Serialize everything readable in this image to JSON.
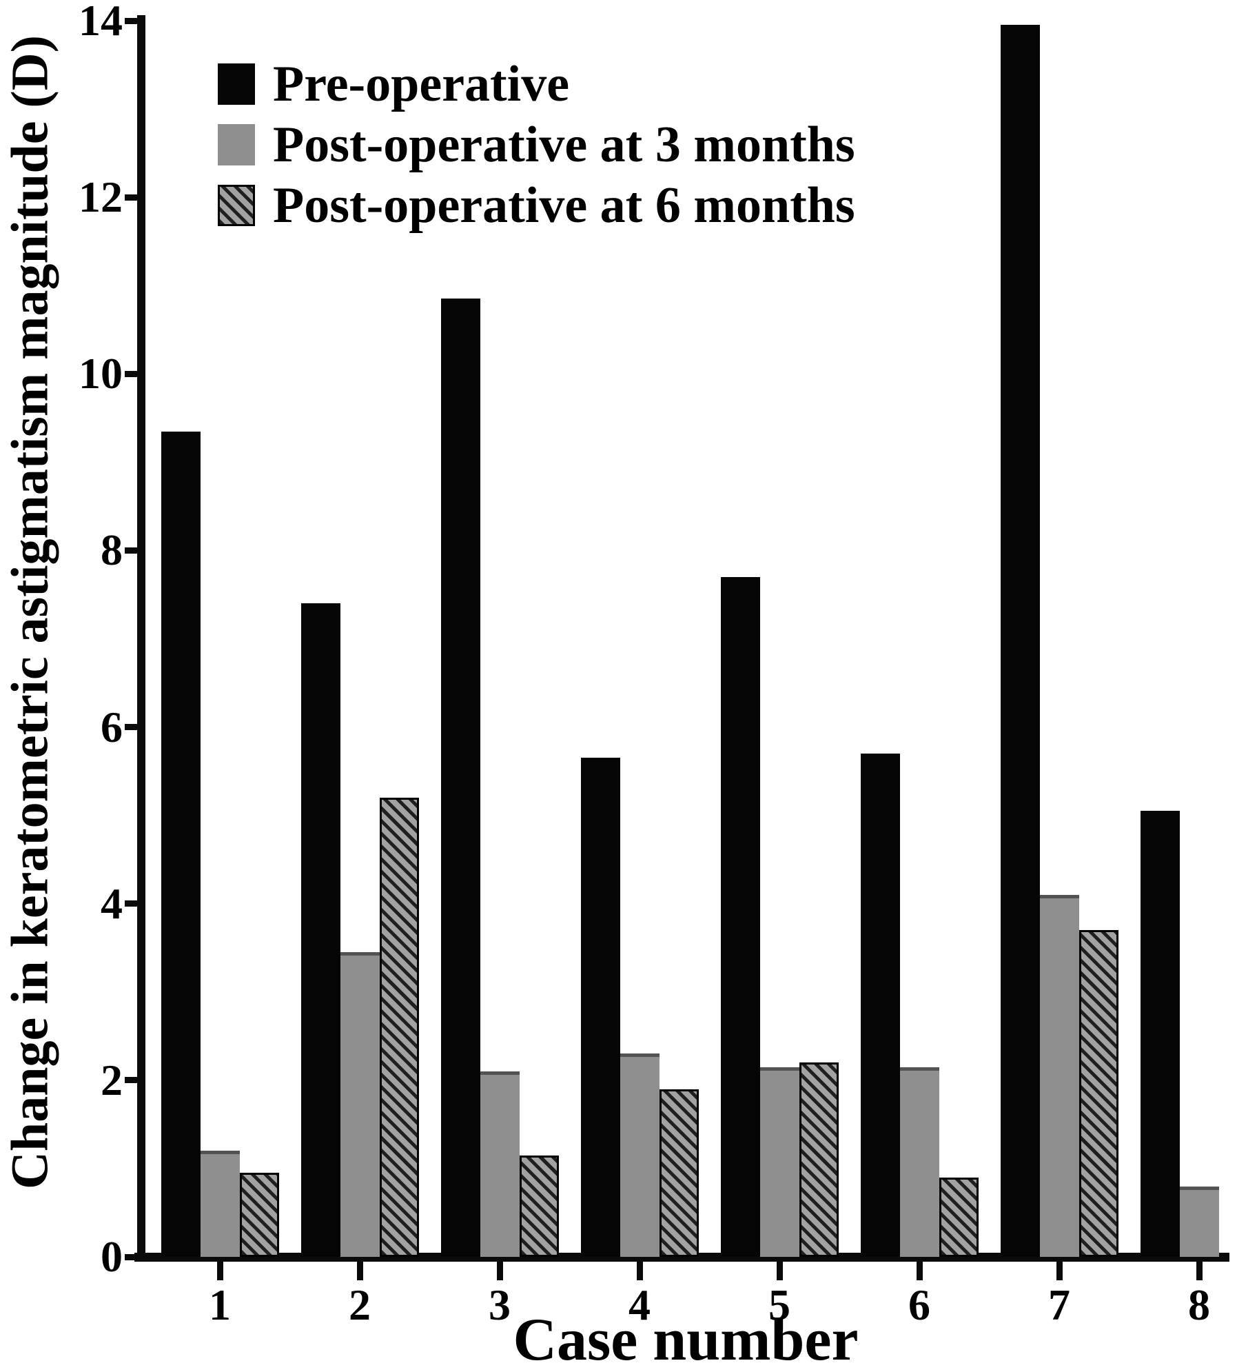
{
  "figure": {
    "background": "#ffffff",
    "text_color": "#000000",
    "axis_color": "#0a0a0a"
  },
  "chart_data": {
    "type": "bar",
    "title": "",
    "xlabel": "Case number",
    "ylabel": "Change in keratometric astigmatism magnitude (D)",
    "categories": [
      "1",
      "2",
      "3",
      "4",
      "5",
      "6",
      "7",
      "8"
    ],
    "series": [
      {
        "name": "Pre-operative",
        "style": "solid-black",
        "color": "#050505",
        "values": [
          9.35,
          7.4,
          10.85,
          5.65,
          7.7,
          5.7,
          13.95,
          5.05
        ]
      },
      {
        "name": "Post-operative at 3 months",
        "style": "solid-gray",
        "color": "#8f8f8f",
        "values": [
          1.2,
          3.45,
          2.1,
          2.3,
          2.15,
          2.15,
          4.1,
          0.8
        ]
      },
      {
        "name": "Post-operative at 6 months",
        "style": "hatched-diagonal",
        "color": "#a2a2a2",
        "hatch_color": "#1f1f1f",
        "values": [
          0.95,
          5.2,
          1.15,
          1.9,
          2.2,
          0.9,
          3.7,
          0
        ]
      }
    ],
    "ylim": [
      0,
      14
    ],
    "y_ticks": [
      0,
      2,
      4,
      6,
      8,
      10,
      12,
      14
    ],
    "grid": false,
    "legend_position": "top-left-inside"
  }
}
